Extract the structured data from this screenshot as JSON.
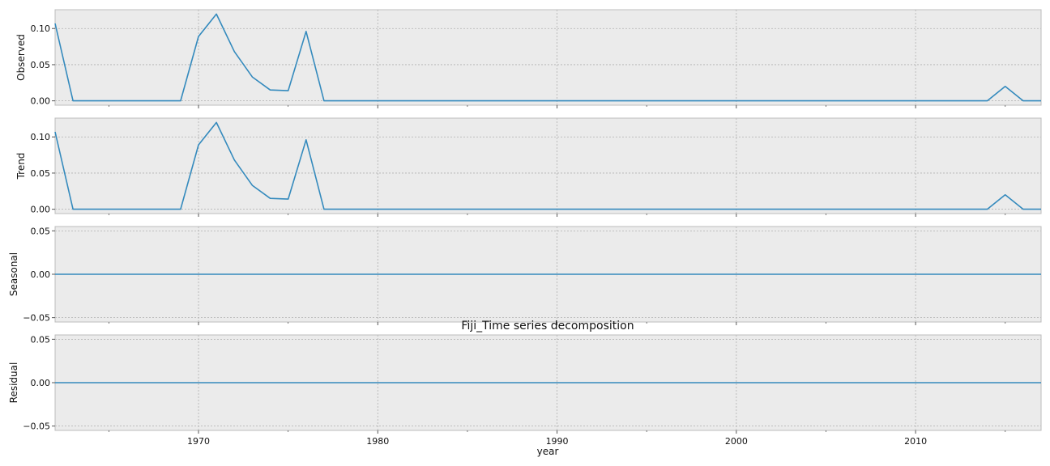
{
  "chart_data": {
    "type": "line",
    "title": "Fiji_Time series decomposition",
    "xlabel": "year",
    "xlim": [
      1962,
      2017
    ],
    "xticks": [
      1970,
      1980,
      1990,
      2000,
      2010
    ],
    "xtick_labels": [
      "1970",
      "1980",
      "1990",
      "2000",
      "2010"
    ],
    "x_minor_ticks": [
      1965,
      1975,
      1985,
      1995,
      2005,
      2015
    ],
    "grid": true,
    "background": "#ebebeb",
    "line_color": "#348abd",
    "panels": [
      {
        "ylabel": "Observed",
        "ylim": [
          -0.006,
          0.126
        ],
        "yticks": [
          0.0,
          0.05,
          0.1
        ],
        "ytick_labels": [
          "0.00",
          "0.05",
          "0.10"
        ],
        "x": [
          1962,
          1963,
          1964,
          1965,
          1966,
          1967,
          1968,
          1969,
          1970,
          1971,
          1972,
          1973,
          1974,
          1975,
          1976,
          1977,
          1978,
          2014,
          2015,
          2016,
          2017
        ],
        "values": [
          0.107,
          0.0,
          0.0,
          0.0,
          0.0,
          0.0,
          0.0,
          0.0,
          0.089,
          0.12,
          0.068,
          0.033,
          0.015,
          0.014,
          0.096,
          0.0,
          0.0,
          0.0,
          0.02,
          0.0,
          0.0
        ]
      },
      {
        "ylabel": "Trend",
        "ylim": [
          -0.006,
          0.126
        ],
        "yticks": [
          0.0,
          0.05,
          0.1
        ],
        "ytick_labels": [
          "0.00",
          "0.05",
          "0.10"
        ],
        "x": [
          1962,
          1963,
          1964,
          1965,
          1966,
          1967,
          1968,
          1969,
          1970,
          1971,
          1972,
          1973,
          1974,
          1975,
          1976,
          1977,
          1978,
          2014,
          2015,
          2016,
          2017
        ],
        "values": [
          0.107,
          0.0,
          0.0,
          0.0,
          0.0,
          0.0,
          0.0,
          0.0,
          0.089,
          0.12,
          0.068,
          0.033,
          0.015,
          0.014,
          0.096,
          0.0,
          0.0,
          0.0,
          0.02,
          0.0,
          0.0
        ]
      },
      {
        "ylabel": "Seasonal",
        "ylim": [
          -0.055,
          0.055
        ],
        "yticks": [
          -0.05,
          0.0,
          0.05
        ],
        "ytick_labels": [
          "−0.05",
          "0.00",
          "0.05"
        ],
        "x": [
          1962,
          2017
        ],
        "values": [
          0.0,
          0.0
        ]
      },
      {
        "ylabel": "Residual",
        "ylim": [
          -0.055,
          0.055
        ],
        "yticks": [
          -0.05,
          0.0,
          0.05
        ],
        "ytick_labels": [
          "−0.05",
          "0.00",
          "0.05"
        ],
        "x": [
          1962,
          2017
        ],
        "values": [
          0.0,
          0.0
        ]
      }
    ]
  }
}
